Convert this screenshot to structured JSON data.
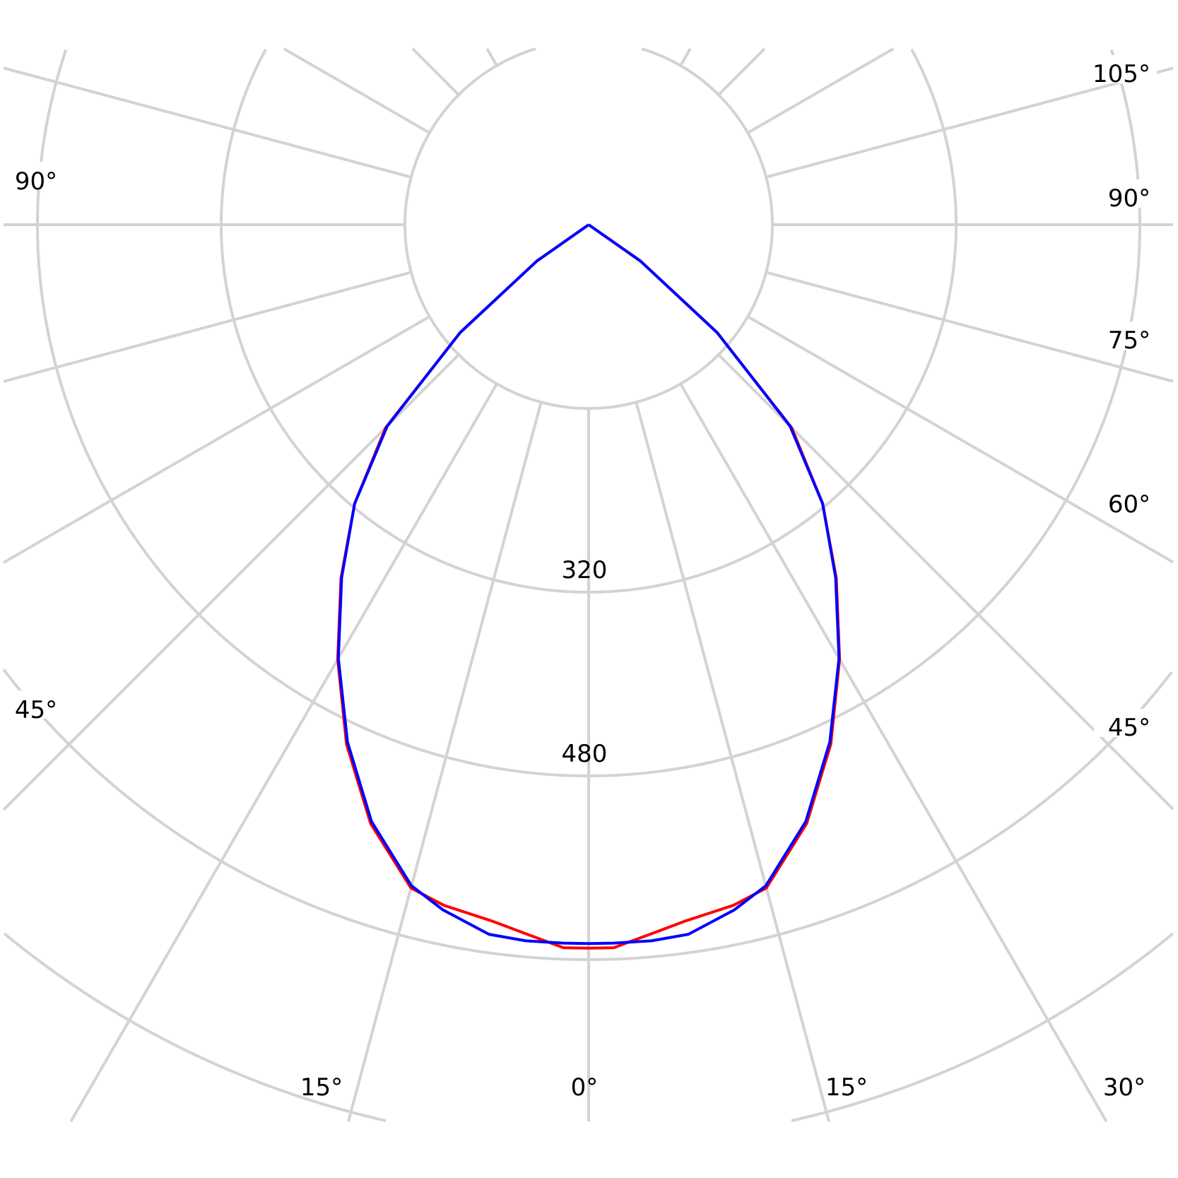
{
  "chart_data": {
    "type": "polar-line",
    "title": "",
    "radial_unit": "cd",
    "radial_rings": [
      160,
      320,
      480,
      640,
      800
    ],
    "radial_tick_labels": [
      "320",
      "480"
    ],
    "angle_step_deg": 15,
    "angle_labels_left": [
      "90°",
      "45°"
    ],
    "angle_labels_right": [
      "105°",
      "90°",
      "75°",
      "60°",
      "45°",
      "30°"
    ],
    "angle_labels_bottom": [
      "15°",
      "0°",
      "15°"
    ],
    "grid": true,
    "series": [
      {
        "color": "#ff0000",
        "angles": [
          0,
          2,
          5,
          8,
          12,
          15,
          20,
          25,
          30,
          35,
          40,
          45,
          50,
          55,
          60
        ],
        "values": [
          630,
          630,
          620,
          612,
          606,
          598,
          555,
          499,
          437,
          376,
          317,
          250,
          146,
          55,
          0
        ]
      },
      {
        "color": "#0000ff",
        "angles": [
          0,
          2,
          5,
          8,
          12,
          15,
          20,
          25,
          30,
          35,
          40,
          45,
          50,
          55,
          60
        ],
        "values": [
          626,
          626,
          626,
          624,
          610,
          596,
          553,
          497,
          436,
          375,
          317,
          248,
          146,
          55,
          0
        ]
      }
    ]
  }
}
